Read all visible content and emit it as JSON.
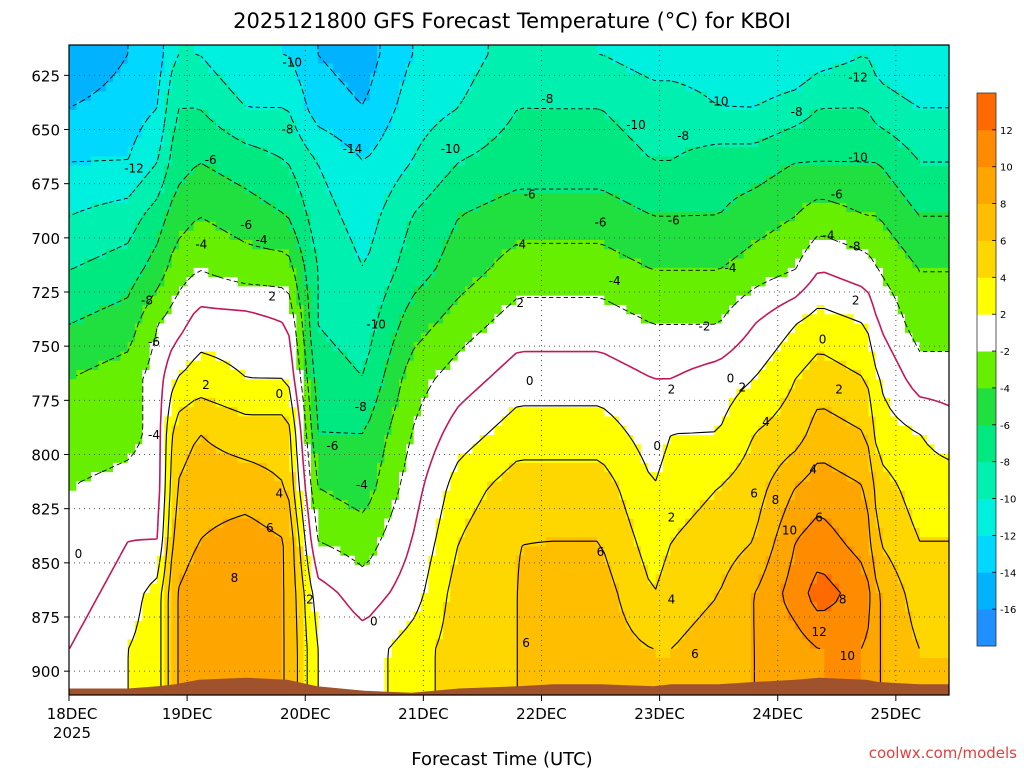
{
  "chart_data": {
    "type": "heatmap",
    "title": "2025121800 GFS Forecast Temperature (°C) for KBOI",
    "xlabel": "Forecast Time (UTC)",
    "ylabel": "",
    "watermark": "coolwx.com/models",
    "x_ticks": [
      "18DEC",
      "19DEC",
      "20DEC",
      "21DEC",
      "22DEC",
      "23DEC",
      "24DEC",
      "25DEC"
    ],
    "x_year": "2025",
    "x_range_days": [
      0,
      7.45
    ],
    "y_ticks": [
      625,
      650,
      675,
      700,
      725,
      750,
      775,
      800,
      825,
      850,
      875,
      900
    ],
    "ylim_hpa": [
      611,
      911
    ],
    "colorbar": {
      "ticks": [
        -16,
        -14,
        -12,
        -10,
        -8,
        -6,
        -4,
        -2,
        2,
        4,
        6,
        8,
        10,
        12
      ],
      "bins": [
        {
          "lo": -18,
          "hi": -16,
          "color": "#1e90ff"
        },
        {
          "lo": -16,
          "hi": -14,
          "color": "#00b2ff"
        },
        {
          "lo": -14,
          "hi": -12,
          "color": "#00d8ff"
        },
        {
          "lo": -12,
          "hi": -10,
          "color": "#00f0e0"
        },
        {
          "lo": -10,
          "hi": -8,
          "color": "#00f0b0"
        },
        {
          "lo": -8,
          "hi": -6,
          "color": "#00e880"
        },
        {
          "lo": -6,
          "hi": -4,
          "color": "#20e040"
        },
        {
          "lo": -4,
          "hi": -2,
          "color": "#66f000"
        },
        {
          "lo": -2,
          "hi": 2,
          "color": "#ffffff"
        },
        {
          "lo": 2,
          "hi": 4,
          "color": "#ffff00"
        },
        {
          "lo": 4,
          "hi": 6,
          "color": "#ffd700"
        },
        {
          "lo": 6,
          "hi": 8,
          "color": "#ffbf00"
        },
        {
          "lo": 8,
          "hi": 10,
          "color": "#ffa500"
        },
        {
          "lo": 10,
          "hi": 12,
          "color": "#ff8c00"
        },
        {
          "lo": 12,
          "hi": 14,
          "color": "#ff6a00"
        }
      ]
    },
    "terrain_color": "#a0522d",
    "time_days": [
      0,
      0.5,
      0.75,
      0.9,
      1.1,
      1.5,
      1.85,
      2.1,
      2.5,
      2.9,
      3.3,
      3.8,
      4.1,
      4.5,
      4.95,
      5.1,
      5.5,
      5.8,
      6.15,
      6.35,
      6.75,
      6.85,
      7.2,
      7.45
    ],
    "levels_hpa": [
      615,
      640,
      665,
      690,
      715,
      740,
      765,
      790,
      815,
      840,
      865,
      890
    ],
    "temperature_c": [
      [
        -16,
        -14,
        -12,
        -10,
        -8,
        -6,
        -4,
        -4,
        -2,
        -2,
        -1,
        0
      ],
      [
        -14,
        -13,
        -12,
        -9,
        -7,
        -5,
        -3,
        -3,
        -1,
        0,
        1,
        2
      ],
      [
        -13,
        -12,
        -10,
        -7,
        -5,
        -2,
        -1,
        -1,
        -1,
        0,
        3,
        3
      ],
      [
        -10,
        -8,
        -7,
        -5,
        -3,
        -1,
        2,
        5,
        6,
        7,
        8,
        8
      ],
      [
        -10,
        -8,
        -6,
        -4,
        -2,
        1,
        3,
        6,
        7,
        8,
        9,
        9
      ],
      [
        -12,
        -10,
        -7,
        -5,
        -3,
        1,
        2,
        5,
        7,
        9,
        9,
        9
      ],
      [
        -12,
        -10,
        -8,
        -6,
        -3,
        0,
        2,
        5,
        6,
        8,
        8,
        8
      ],
      [
        -14,
        -13,
        -10,
        -9,
        -8,
        -8,
        -7,
        -6,
        -4,
        -2,
        1,
        2
      ],
      [
        -15,
        -14,
        -12,
        -11,
        -10,
        -9,
        -8,
        -6,
        -5,
        -3,
        -1,
        1
      ],
      [
        -12,
        -11,
        -10,
        -8,
        -7,
        -5,
        -3,
        -2,
        -1,
        0,
        1,
        3
      ],
      [
        -11,
        -10,
        -8,
        -6,
        -5,
        -3,
        -1,
        1,
        3,
        4,
        5,
        5
      ],
      [
        -9,
        -8,
        -7,
        -5,
        -3,
        -1,
        1,
        3,
        5,
        6,
        6,
        6
      ],
      [
        -10,
        -8,
        -7,
        -5,
        -3,
        -1,
        1,
        3,
        5,
        6,
        7,
        7
      ],
      [
        -10,
        -8,
        -7,
        -5,
        -3,
        -1,
        1,
        3,
        5,
        6,
        7,
        7
      ],
      [
        -11,
        -9,
        -8,
        -6,
        -4,
        -2,
        0,
        1,
        2,
        3,
        4,
        6
      ],
      [
        -11,
        -9,
        -8,
        -6,
        -4,
        -2,
        0,
        2,
        3,
        4,
        5,
        6
      ],
      [
        -11,
        -10,
        -7,
        -6,
        -4,
        -2,
        1,
        2,
        4,
        5,
        6,
        7
      ],
      [
        -12,
        -10,
        -7,
        -5,
        -3,
        0,
        2,
        4,
        5,
        6,
        8,
        8
      ],
      [
        -12,
        -9,
        -6,
        -4,
        -2,
        2,
        4,
        5,
        8,
        10,
        11,
        9
      ],
      [
        -11,
        -8,
        -6,
        -3,
        0,
        3,
        5,
        7,
        9,
        11,
        13,
        10
      ],
      [
        -10,
        -8,
        -6,
        -4,
        -1,
        2,
        4,
        6,
        8,
        9,
        11,
        10
      ],
      [
        -11,
        -9,
        -6,
        -4,
        -2,
        0,
        2,
        3,
        5,
        6,
        8,
        8
      ],
      [
        -12,
        -10,
        -8,
        -6,
        -4,
        -3,
        -1,
        2,
        3,
        4,
        5,
        6
      ],
      [
        -12,
        -10,
        -8,
        -6,
        -4,
        -3,
        -1,
        1,
        3,
        4,
        5,
        6
      ]
    ],
    "surface_hpa": [
      908,
      908,
      907,
      906,
      904,
      903,
      904,
      907,
      909,
      910,
      908,
      907,
      906,
      906,
      907,
      906,
      906,
      905,
      904,
      903,
      904,
      905,
      906,
      906
    ],
    "contour_labels": [
      {
        "t": 0.55,
        "p": 668,
        "v": "-12"
      },
      {
        "t": 0.66,
        "p": 729,
        "v": "-8"
      },
      {
        "t": 0.72,
        "p": 748,
        "v": "-6"
      },
      {
        "t": 0.72,
        "p": 791,
        "v": "-4"
      },
      {
        "t": 0.08,
        "p": 846,
        "v": "0"
      },
      {
        "t": 1.2,
        "p": 664,
        "v": "-6"
      },
      {
        "t": 1.12,
        "p": 703,
        "v": "-4"
      },
      {
        "t": 1.5,
        "p": 694,
        "v": "-6"
      },
      {
        "t": 1.63,
        "p": 701,
        "v": "-4"
      },
      {
        "t": 1.72,
        "p": 727,
        "v": "2"
      },
      {
        "t": 1.16,
        "p": 768,
        "v": "2"
      },
      {
        "t": 1.78,
        "p": 772,
        "v": "0"
      },
      {
        "t": 1.78,
        "p": 818,
        "v": "4"
      },
      {
        "t": 1.7,
        "p": 834,
        "v": "6"
      },
      {
        "t": 1.4,
        "p": 857,
        "v": "8"
      },
      {
        "t": 2.04,
        "p": 867,
        "v": "2"
      },
      {
        "t": 1.89,
        "p": 619,
        "v": "-10"
      },
      {
        "t": 1.85,
        "p": 650,
        "v": "-8"
      },
      {
        "t": 2.4,
        "p": 659,
        "v": "-14"
      },
      {
        "t": 2.6,
        "p": 740,
        "v": "-10"
      },
      {
        "t": 2.47,
        "p": 778,
        "v": "-8"
      },
      {
        "t": 2.23,
        "p": 796,
        "v": "-6"
      },
      {
        "t": 2.48,
        "p": 814,
        "v": "-4"
      },
      {
        "t": 2.58,
        "p": 877,
        "v": "0"
      },
      {
        "t": 3.23,
        "p": 659,
        "v": "-10"
      },
      {
        "t": 4.05,
        "p": 636,
        "v": "-8"
      },
      {
        "t": 3.9,
        "p": 680,
        "v": "-6"
      },
      {
        "t": 3.82,
        "p": 703,
        "v": "-4"
      },
      {
        "t": 3.82,
        "p": 730,
        "v": "2"
      },
      {
        "t": 3.9,
        "p": 766,
        "v": "0"
      },
      {
        "t": 3.87,
        "p": 887,
        "v": "6"
      },
      {
        "t": 4.5,
        "p": 845,
        "v": "6"
      },
      {
        "t": 4.5,
        "p": 693,
        "v": "-6"
      },
      {
        "t": 4.62,
        "p": 720,
        "v": "-4"
      },
      {
        "t": 4.8,
        "p": 648,
        "v": "-10"
      },
      {
        "t": 5.2,
        "p": 653,
        "v": "-8"
      },
      {
        "t": 5.12,
        "p": 692,
        "v": "-6"
      },
      {
        "t": 5.1,
        "p": 770,
        "v": "2"
      },
      {
        "t": 4.98,
        "p": 796,
        "v": "0"
      },
      {
        "t": 5.1,
        "p": 829,
        "v": "2"
      },
      {
        "t": 5.1,
        "p": 867,
        "v": "4"
      },
      {
        "t": 5.3,
        "p": 892,
        "v": "6"
      },
      {
        "t": 5.6,
        "p": 714,
        "v": "-4"
      },
      {
        "t": 5.5,
        "p": 637,
        "v": "-10"
      },
      {
        "t": 5.38,
        "p": 741,
        "v": "-2"
      },
      {
        "t": 5.6,
        "p": 765,
        "v": "0"
      },
      {
        "t": 5.7,
        "p": 769,
        "v": "2"
      },
      {
        "t": 5.9,
        "p": 785,
        "v": "4"
      },
      {
        "t": 5.8,
        "p": 818,
        "v": "6"
      },
      {
        "t": 5.98,
        "p": 821,
        "v": "8"
      },
      {
        "t": 6.1,
        "p": 835,
        "v": "10"
      },
      {
        "t": 6.35,
        "p": 882,
        "v": "12"
      },
      {
        "t": 6.59,
        "p": 893,
        "v": "10"
      },
      {
        "t": 6.55,
        "p": 867,
        "v": "8"
      },
      {
        "t": 6.35,
        "p": 829,
        "v": "6"
      },
      {
        "t": 6.3,
        "p": 807,
        "v": "4"
      },
      {
        "t": 6.52,
        "p": 770,
        "v": "2"
      },
      {
        "t": 6.38,
        "p": 747,
        "v": "0"
      },
      {
        "t": 6.16,
        "p": 642,
        "v": "-8"
      },
      {
        "t": 6.68,
        "p": 626,
        "v": "-12"
      },
      {
        "t": 6.68,
        "p": 663,
        "v": "-10"
      },
      {
        "t": 6.5,
        "p": 680,
        "v": "-6"
      },
      {
        "t": 6.43,
        "p": 699,
        "v": "-4"
      },
      {
        "t": 6.65,
        "p": 704,
        "v": "-8"
      },
      {
        "t": 6.66,
        "p": 729,
        "v": "2"
      }
    ]
  }
}
